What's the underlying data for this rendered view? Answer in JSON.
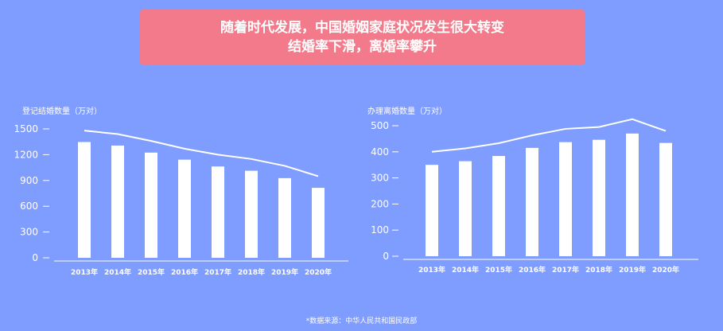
{
  "banner": {
    "line1": "随着时代发展，中国婚姻家庭状况发生很大转变",
    "line2": "结婚率下滑，离婚率攀升"
  },
  "source": "*数据来源：中华人民共和国民政部",
  "colors": {
    "background": "#7f9cff",
    "banner": "#f27a8a",
    "marks": "#ffffff"
  },
  "chart_data": [
    {
      "type": "bar",
      "title": "登记结婚数量（万对）",
      "categories": [
        "2013年",
        "2014年",
        "2015年",
        "2016年",
        "2017年",
        "2018年",
        "2019年",
        "2020年"
      ],
      "values": [
        1347,
        1306,
        1224,
        1142,
        1063,
        1013,
        927,
        814
      ],
      "line_values": [
        1480,
        1440,
        1360,
        1270,
        1200,
        1150,
        1070,
        950
      ],
      "yticks": [
        "0",
        "300",
        "600",
        "900",
        "1200",
        "1500"
      ],
      "ylim": [
        0,
        1500
      ]
    },
    {
      "type": "bar",
      "title": "办理离婚数量（万对）",
      "categories": [
        "2013年",
        "2014年",
        "2015年",
        "2016年",
        "2017年",
        "2018年",
        "2019年",
        "2020年"
      ],
      "values": [
        350,
        364,
        384,
        415,
        437,
        446,
        470,
        434
      ],
      "line_values": [
        400,
        413,
        433,
        463,
        488,
        495,
        525,
        480
      ],
      "yticks": [
        "0",
        "100",
        "200",
        "300",
        "400",
        "500"
      ],
      "ylim": [
        0,
        500
      ]
    }
  ]
}
